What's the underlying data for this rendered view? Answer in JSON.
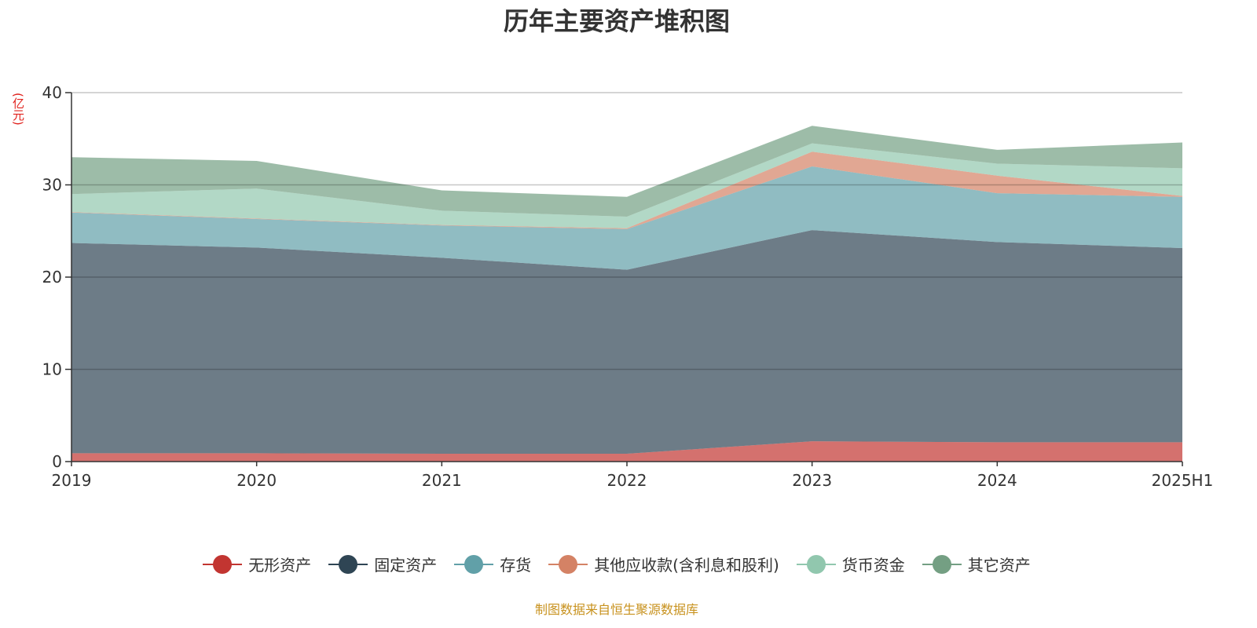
{
  "chart_data": {
    "type": "area",
    "stacked": true,
    "title": "历年主要资产堆积图",
    "ylabel": "(亿元)",
    "xlabel": "",
    "categories": [
      "2019",
      "2020",
      "2021",
      "2022",
      "2023",
      "2024",
      "2025H1"
    ],
    "ylim": [
      0,
      40
    ],
    "yticks": [
      0,
      10,
      20,
      30,
      40
    ],
    "grid": true,
    "legend_position": "bottom",
    "series": [
      {
        "name": "无形资产",
        "color": "#c23531",
        "values": [
          0.9,
          0.9,
          0.85,
          0.85,
          2.2,
          2.1,
          2.1
        ]
      },
      {
        "name": "固定资产",
        "color": "#2f4554",
        "values": [
          22.8,
          22.3,
          21.25,
          19.95,
          22.9,
          21.7,
          21.05
        ]
      },
      {
        "name": "存货",
        "color": "#61a0a8",
        "values": [
          3.3,
          3.1,
          3.5,
          4.4,
          6.9,
          5.3,
          5.55
        ]
      },
      {
        "name": "其他应收款(含利息和股利)",
        "color": "#d48265",
        "values": [
          0.05,
          0.05,
          0.05,
          0.1,
          1.6,
          1.9,
          0.1
        ]
      },
      {
        "name": "货币资金",
        "color": "#91c7ae",
        "values": [
          1.95,
          3.25,
          1.55,
          1.25,
          0.9,
          1.3,
          3.0
        ]
      },
      {
        "name": "其它资产",
        "color": "#749f83",
        "values": [
          4.0,
          3.0,
          2.2,
          2.15,
          1.9,
          1.5,
          2.8
        ]
      }
    ]
  },
  "footer": "制图数据来自恒生聚源数据库"
}
